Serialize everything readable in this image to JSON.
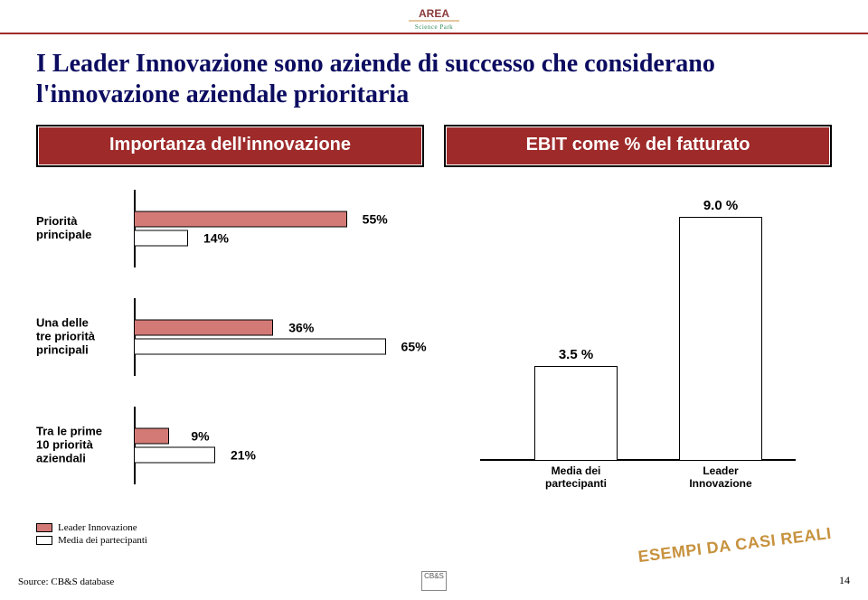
{
  "page": {
    "title": "I Leader Innovazione sono aziende di successo che considerano l'innovazione aziendale prioritaria",
    "source": "Source: CB&S database",
    "page_number": "14",
    "stamp": "ESEMPI DA CASI REALI",
    "logo_sub": "Science Park",
    "footer_logo": "CB&S"
  },
  "headers": {
    "left": "Importanza dell'innovazione",
    "right": "EBIT come % del fatturato"
  },
  "colors": {
    "title": "#0c0c60",
    "header_bg": "#9e2a2a",
    "header_text": "#ffffff",
    "bar_red": "#d37a77",
    "bar_white": "#ffffff",
    "border": "#000000",
    "stamp": "#c7923e",
    "divider": "#9e2a2a",
    "background": "#ffffff"
  },
  "left_chart": {
    "type": "bar",
    "orientation": "horizontal",
    "max_pct": 70,
    "rows": [
      {
        "label": "Priorità\nprincipale",
        "red": 55,
        "white": 14
      },
      {
        "label": "Una delle\ntre priorità\nprincipali",
        "red": 36,
        "white": 65
      },
      {
        "label": "Tra le prime\n10 priorità\naziendali",
        "red": 9,
        "white": 21
      }
    ],
    "legend": [
      {
        "color": "#d37a77",
        "label": "Leader Innovazione"
      },
      {
        "color": "#ffffff",
        "label": "Media dei partecipanti"
      }
    ]
  },
  "right_chart": {
    "type": "bar",
    "orientation": "vertical",
    "ylim": [
      0,
      10
    ],
    "bars": [
      {
        "category": "Media dei\npartecipanti",
        "value": 3.5,
        "label": "3.5 %"
      },
      {
        "category": "Leader\nInnovazione",
        "value": 9.0,
        "label": "9.0 %"
      }
    ]
  }
}
